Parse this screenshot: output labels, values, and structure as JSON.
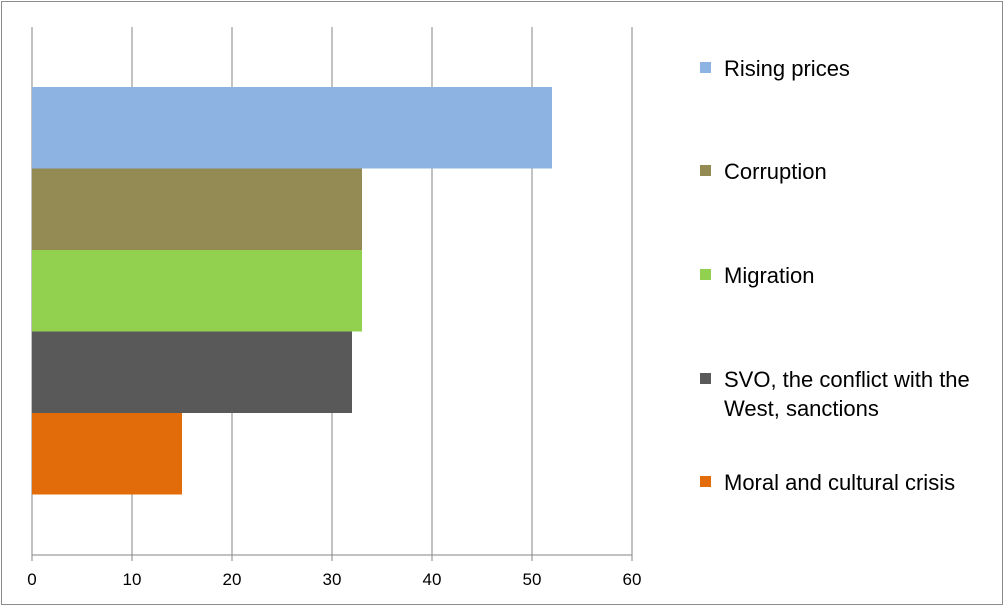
{
  "chart_data": {
    "type": "bar",
    "orientation": "horizontal",
    "categories": [
      "Rising prices",
      "Corruption",
      "Migration",
      "SVO, the conflict with the West, sanctions",
      "Moral and cultural crisis"
    ],
    "values": [
      52,
      33,
      33,
      32,
      15
    ],
    "colors": [
      "#8db3e2",
      "#948a54",
      "#92d050",
      "#595959",
      "#e36c0a"
    ],
    "xlim": [
      0,
      60
    ],
    "xticks": [
      "0",
      "10",
      "20",
      "30",
      "40",
      "50",
      "60"
    ],
    "grid": "vertical",
    "legend_position": "right"
  }
}
